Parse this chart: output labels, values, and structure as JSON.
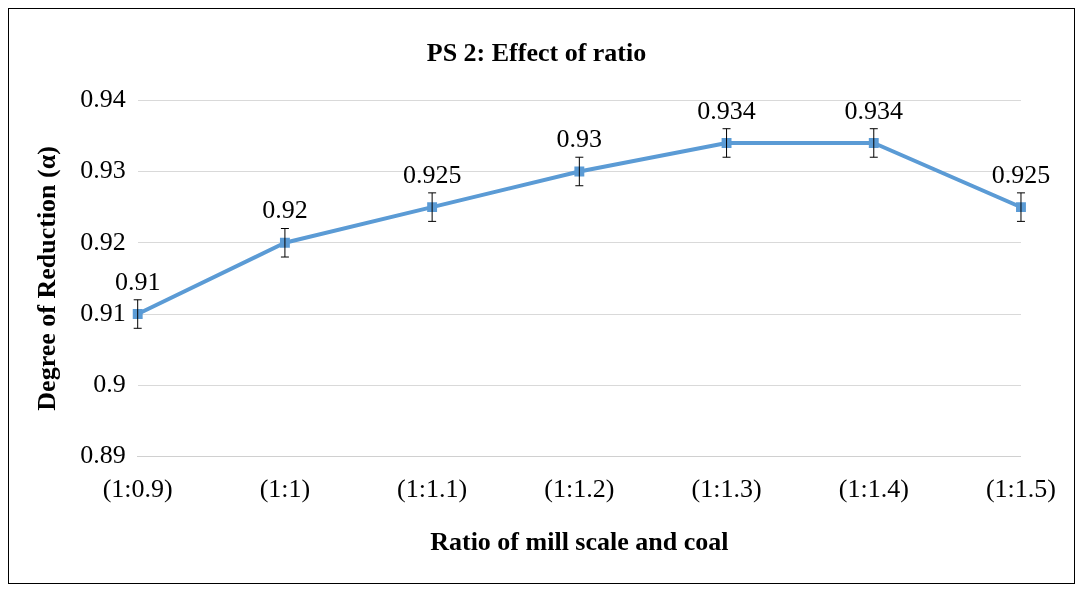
{
  "chart_data": {
    "type": "line",
    "title": "PS 2: Effect of ratio",
    "xlabel": "Ratio of mill scale and coal",
    "ylabel": "Degree of Reduction (α)",
    "categories": [
      "(1:0.9)",
      "(1:1)",
      "(1:1.1)",
      "(1:1.2)",
      "(1:1.3)",
      "(1:1.4)",
      "(1:1.5)"
    ],
    "series": [
      {
        "color": "#5b9bd5",
        "values": [
          0.91,
          0.92,
          0.925,
          0.93,
          0.934,
          0.934,
          0.925
        ],
        "errors": [
          0.002,
          0.002,
          0.002,
          0.002,
          0.002,
          0.002,
          0.002
        ]
      }
    ],
    "ylim": [
      0.89,
      0.94
    ],
    "yticks": [
      0.89,
      0.9,
      0.91,
      0.92,
      0.93,
      0.94
    ],
    "grid": "y",
    "legend": false,
    "marker": "square",
    "line_style": "solid",
    "data_labels": true
  }
}
